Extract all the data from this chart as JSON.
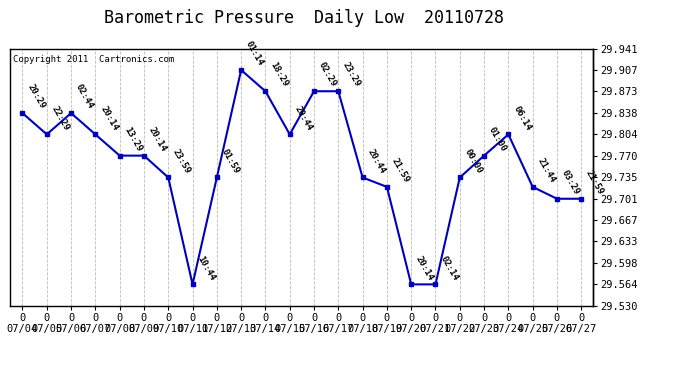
{
  "title": "Barometric Pressure  Daily Low  20110728",
  "copyright": "Copyright 2011  Cartronics.com",
  "dates": [
    "07/04",
    "07/05",
    "07/06",
    "07/07",
    "07/08",
    "07/09",
    "07/10",
    "07/11",
    "07/12",
    "07/13",
    "07/14",
    "07/15",
    "07/16",
    "07/17",
    "07/18",
    "07/19",
    "07/20",
    "07/21",
    "07/22",
    "07/23",
    "07/24",
    "07/25",
    "07/26",
    "07/27"
  ],
  "values": [
    29.838,
    29.804,
    29.838,
    29.804,
    29.77,
    29.77,
    29.735,
    29.564,
    29.735,
    29.907,
    29.873,
    29.804,
    29.873,
    29.873,
    29.735,
    29.72,
    29.564,
    29.564,
    29.735,
    29.77,
    29.804,
    29.72,
    29.701,
    29.701
  ],
  "times": [
    "20:29",
    "22:29",
    "02:44",
    "20:14",
    "13:29",
    "20:14",
    "23:59",
    "10:44",
    "01:59",
    "01:14",
    "18:29",
    "20:44",
    "02:29",
    "23:29",
    "20:44",
    "21:59",
    "20:14",
    "02:14",
    "00:00",
    "01:00",
    "06:14",
    "21:44",
    "03:29",
    "21:59"
  ],
  "ylim_low": 29.53,
  "ylim_high": 29.941,
  "yticks": [
    29.53,
    29.564,
    29.598,
    29.633,
    29.667,
    29.701,
    29.735,
    29.77,
    29.804,
    29.838,
    29.873,
    29.907,
    29.941
  ],
  "line_color": "#0000bb",
  "bg_color": "#ffffff",
  "grid_color": "#bbbbbb",
  "title_fontsize": 12,
  "tick_fontsize": 7.5,
  "annot_fontsize": 6.5,
  "annot_rotation": -60
}
